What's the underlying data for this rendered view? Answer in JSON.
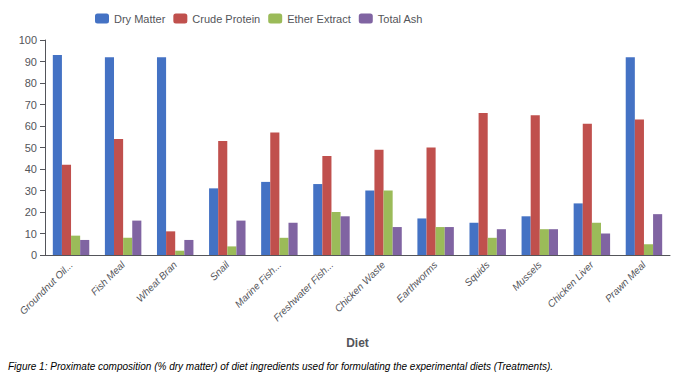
{
  "chart_data": {
    "type": "bar",
    "caption": "Figure 1: Proximate composition (% dry matter) of diet ingredients used for formulating the experimental diets (Treatments).",
    "xlabel": "Diet",
    "categories": [
      "Groundnut Oil...",
      "Fish Meal",
      "Wheat Bran",
      "Snail",
      "Marine Fish...",
      "Freshwater Fish...",
      "Chicken Waste",
      "Earthworms",
      "Squids",
      "Mussels",
      "Chicken Liver",
      "Prawn Meal"
    ],
    "series": [
      {
        "name": "Dry Matter",
        "color": "#4472C4",
        "values": [
          93,
          92,
          92,
          31,
          34,
          33,
          30,
          17,
          15,
          18,
          24,
          92
        ]
      },
      {
        "name": "Crude Protein",
        "color": "#C0504D",
        "values": [
          42,
          54,
          11,
          53,
          57,
          46,
          49,
          50,
          66,
          65,
          61,
          63
        ]
      },
      {
        "name": "Ether Extract",
        "color": "#9BBB59",
        "values": [
          9,
          8,
          2,
          4,
          8,
          20,
          30,
          13,
          8,
          12,
          15,
          5
        ]
      },
      {
        "name": "Total Ash",
        "color": "#8064A2",
        "values": [
          7,
          16,
          7,
          16,
          15,
          18,
          13,
          13,
          12,
          12,
          10,
          19
        ]
      }
    ],
    "ylim": [
      0,
      100
    ],
    "yticks": [
      0,
      10,
      20,
      30,
      40,
      50,
      60,
      70,
      80,
      90,
      100
    ],
    "grid": false,
    "legend": "upper left"
  }
}
